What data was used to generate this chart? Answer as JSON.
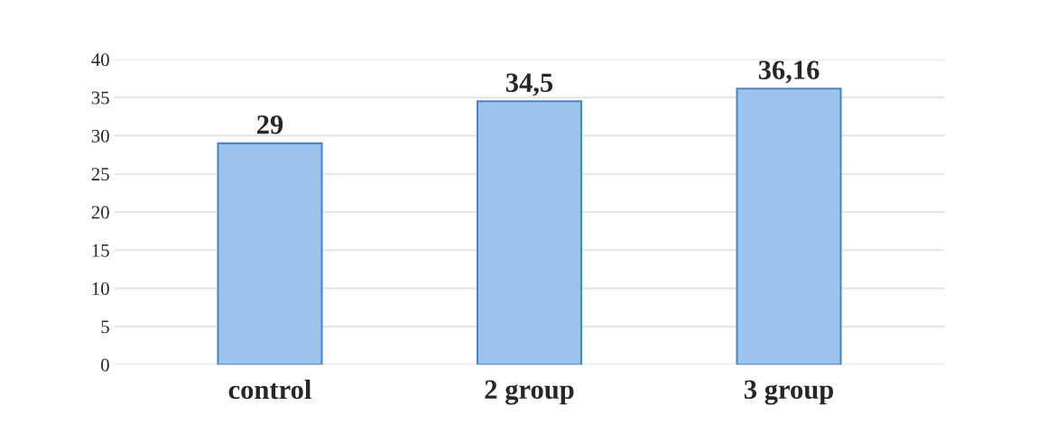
{
  "chart_data": {
    "type": "bar",
    "categories": [
      "control",
      "2 group",
      "3 group"
    ],
    "values": [
      29,
      34.5,
      36.16
    ],
    "value_labels": [
      "29",
      "34,5",
      "36,16"
    ],
    "color": "#9dc3ec",
    "ylim": [
      0,
      40
    ],
    "yticks": [
      0,
      5,
      10,
      15,
      20,
      25,
      30,
      35,
      40
    ],
    "grid": "y"
  }
}
